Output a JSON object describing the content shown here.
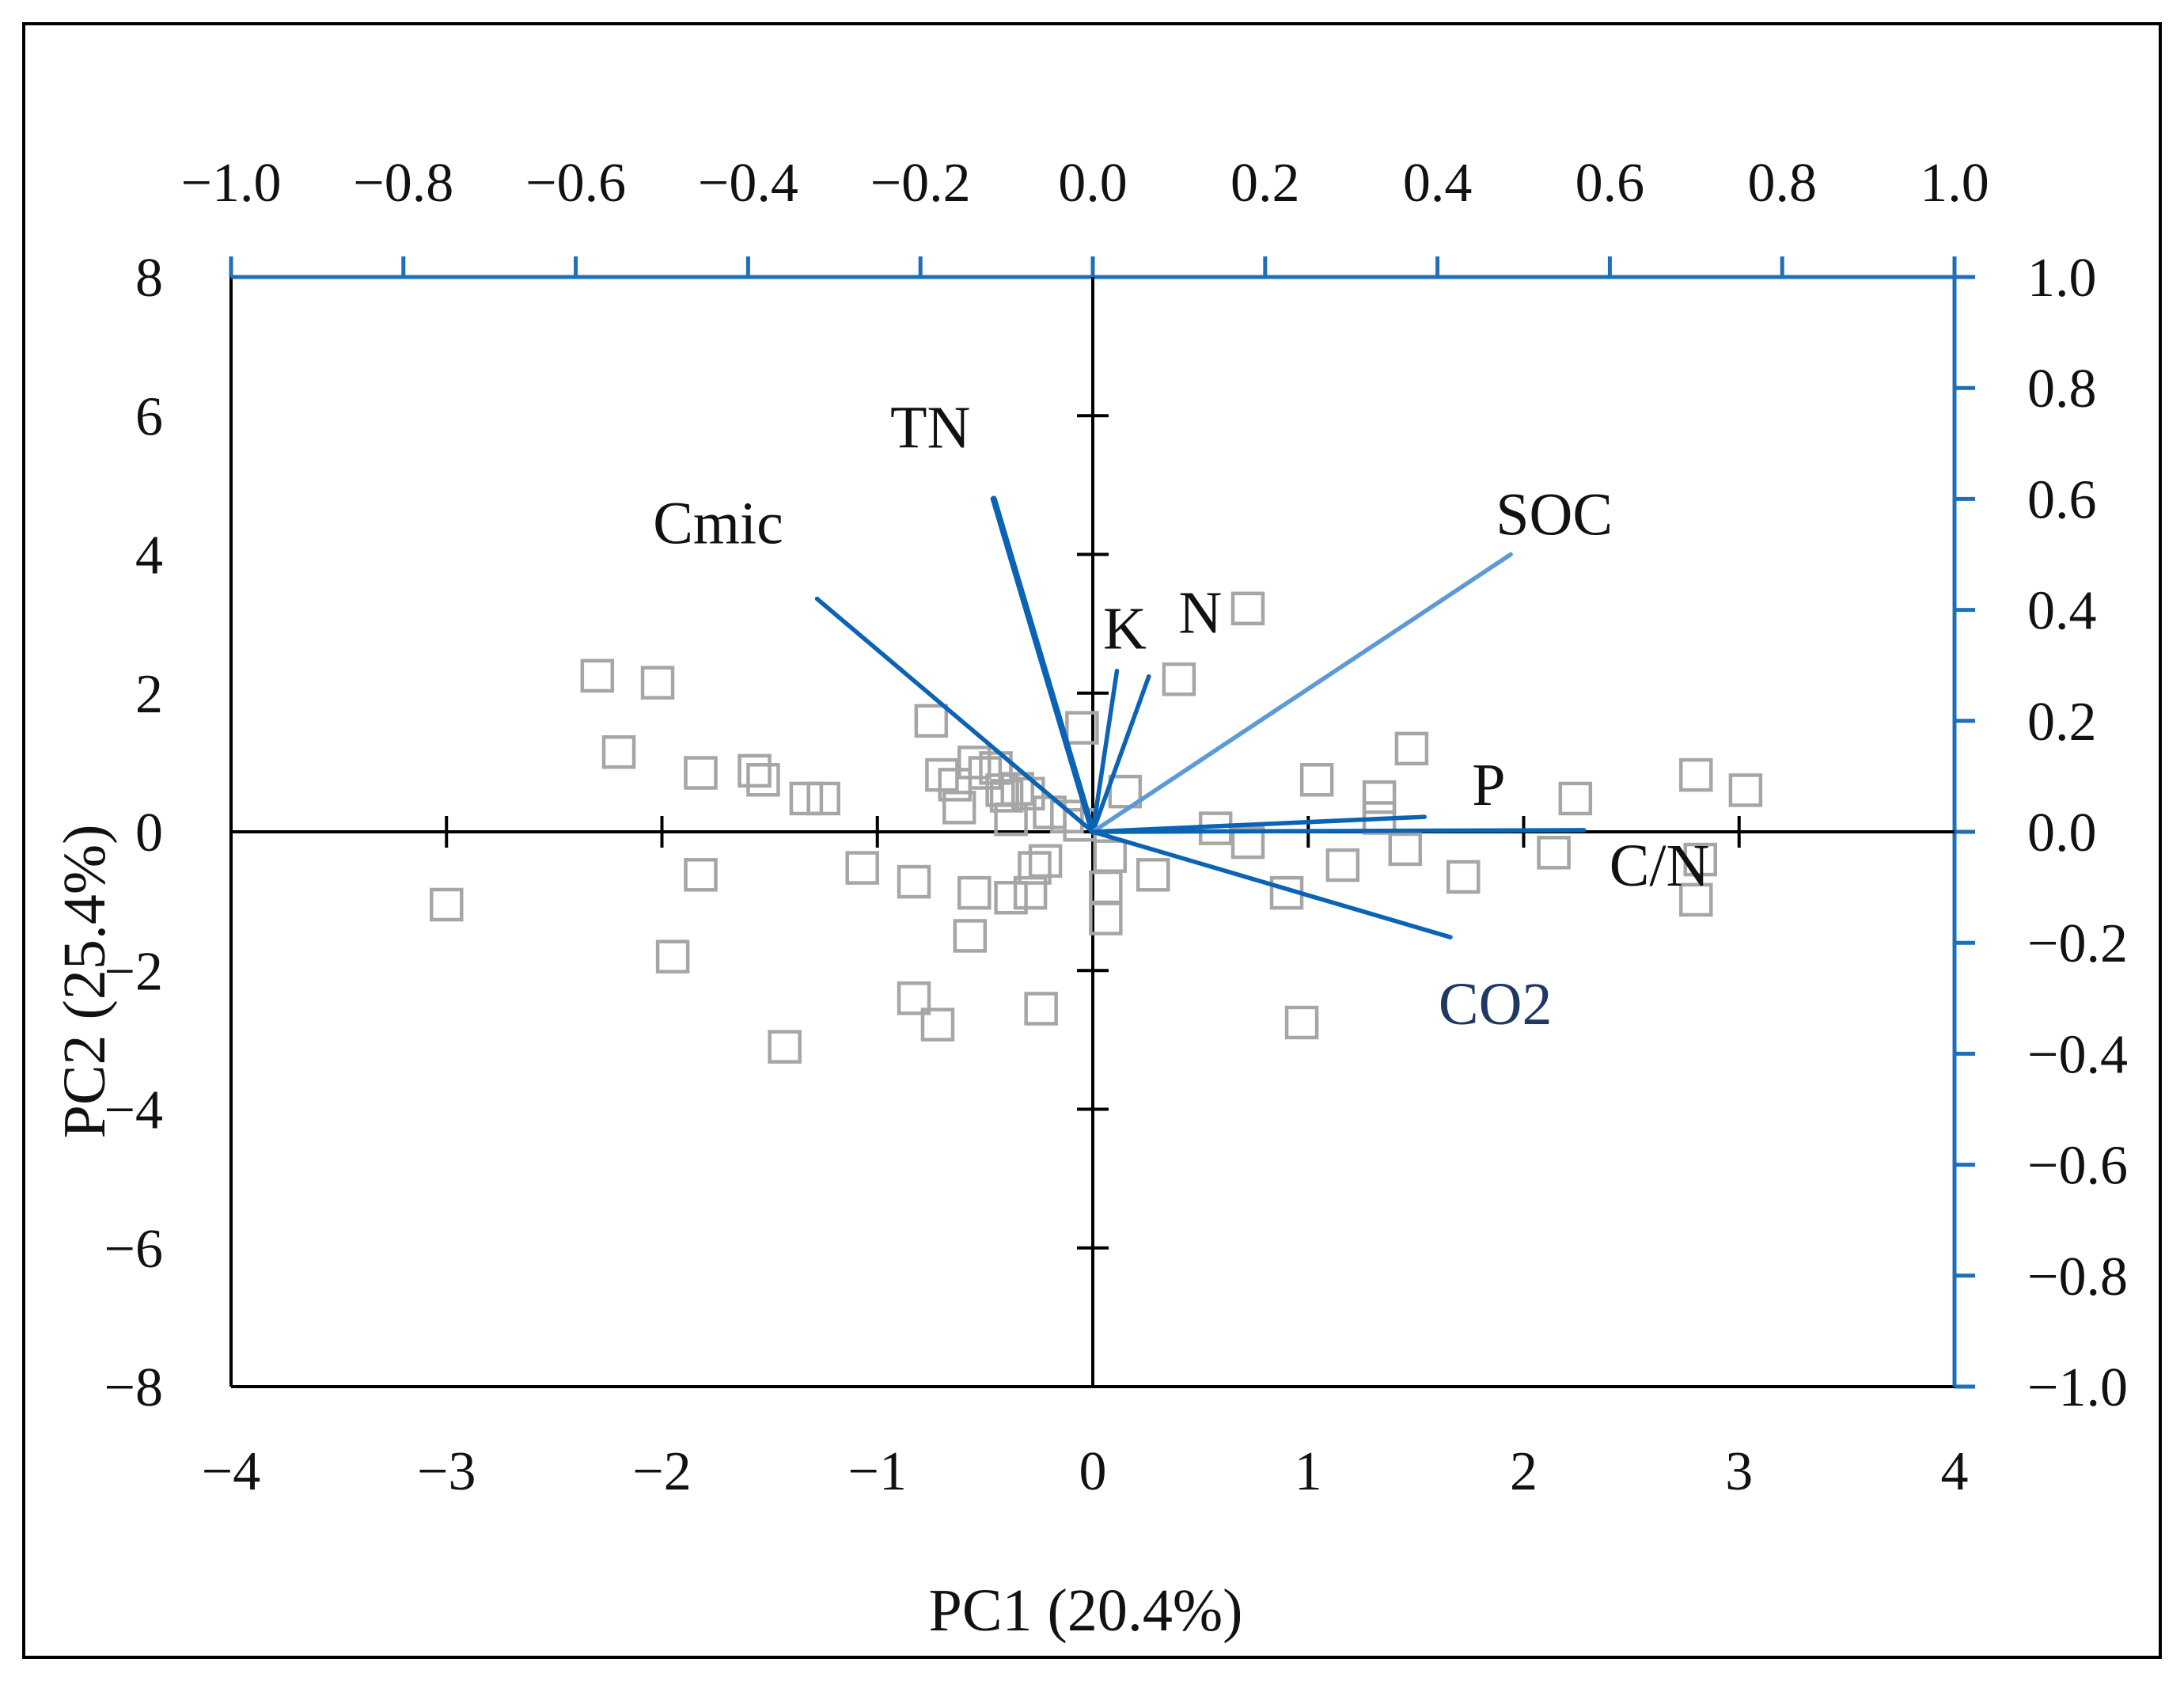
{
  "colors": {
    "frame": "#000000",
    "primary_axis": "#000000",
    "loading_axis": "#1F6FB8",
    "vector_dark": "#0B63B5",
    "vector_light": "#5B9BD5",
    "vector_label_dark": "#1F3864",
    "marker": "#A6A6A6",
    "text": "#111111"
  },
  "chart_data": {
    "type": "scatter",
    "subtype": "pca-biplot",
    "xlabel": "PC1 (20.4%)",
    "ylabel": "PC2 (25.4%)",
    "score_axes": {
      "xlim": [
        -4,
        4
      ],
      "ylim": [
        -8,
        8
      ],
      "x_ticks": [
        {
          "value": -4,
          "label": "−4"
        },
        {
          "value": -3,
          "label": "−3"
        },
        {
          "value": -2,
          "label": "−2"
        },
        {
          "value": -1,
          "label": "−1"
        },
        {
          "value": 0,
          "label": "0"
        },
        {
          "value": 1,
          "label": "1"
        },
        {
          "value": 2,
          "label": "2"
        },
        {
          "value": 3,
          "label": "3"
        },
        {
          "value": 4,
          "label": "4"
        }
      ],
      "y_ticks": [
        {
          "value": 8,
          "label": "8"
        },
        {
          "value": 6,
          "label": "6"
        },
        {
          "value": 4,
          "label": "4"
        },
        {
          "value": 2,
          "label": "2"
        },
        {
          "value": 0,
          "label": "0"
        },
        {
          "value": -2,
          "label": "−2"
        },
        {
          "value": -4,
          "label": "−4"
        },
        {
          "value": -6,
          "label": "−6"
        },
        {
          "value": -8,
          "label": "−8"
        }
      ]
    },
    "loading_axes": {
      "xlim": [
        -1,
        1
      ],
      "ylim": [
        -1,
        1
      ],
      "x_ticks": [
        {
          "value": -1.0,
          "label": "−1.0"
        },
        {
          "value": -0.8,
          "label": "−0.8"
        },
        {
          "value": -0.6,
          "label": "−0.6"
        },
        {
          "value": -0.4,
          "label": "−0.4"
        },
        {
          "value": -0.2,
          "label": "−0.2"
        },
        {
          "value": 0.0,
          "label": "0.0"
        },
        {
          "value": 0.2,
          "label": "0.2"
        },
        {
          "value": 0.4,
          "label": "0.4"
        },
        {
          "value": 0.6,
          "label": "0.6"
        },
        {
          "value": 0.8,
          "label": "0.8"
        },
        {
          "value": 1.0,
          "label": "1.0"
        }
      ],
      "y_ticks": [
        {
          "value": 1.0,
          "label": "1.0"
        },
        {
          "value": 0.8,
          "label": "0.8"
        },
        {
          "value": 0.6,
          "label": "0.6"
        },
        {
          "value": 0.4,
          "label": "0.4"
        },
        {
          "value": 0.2,
          "label": "0.2"
        },
        {
          "value": 0.0,
          "label": "0.0"
        },
        {
          "value": -0.2,
          "label": "−0.2"
        },
        {
          "value": -0.4,
          "label": "−0.4"
        },
        {
          "value": -0.6,
          "label": "−0.6"
        },
        {
          "value": -0.8,
          "label": "−0.8"
        },
        {
          "value": -1.0,
          "label": "−1.0"
        }
      ]
    },
    "loadings": [
      {
        "name": "TN",
        "x": -0.115,
        "y": 0.6,
        "style": "dark",
        "weight": "bold"
      },
      {
        "name": "Cmic",
        "x": -0.32,
        "y": 0.42,
        "style": "dark",
        "weight": "normal"
      },
      {
        "name": "K",
        "x": 0.028,
        "y": 0.29,
        "style": "dark",
        "weight": "normal"
      },
      {
        "name": "N",
        "x": 0.065,
        "y": 0.28,
        "style": "dark",
        "weight": "normal"
      },
      {
        "name": "SOC",
        "x": 0.485,
        "y": 0.5,
        "style": "light",
        "weight": "normal"
      },
      {
        "name": "P",
        "x": 0.385,
        "y": 0.027,
        "style": "dark",
        "weight": "normal"
      },
      {
        "name": "C/N",
        "x": 0.57,
        "y": 0.003,
        "style": "dark",
        "weight": "normal"
      },
      {
        "name": "CO2",
        "x": 0.415,
        "y": -0.19,
        "style": "dark",
        "weight": "normal"
      }
    ],
    "scores": [
      {
        "x": -3.0,
        "y": -1.05
      },
      {
        "x": -2.3,
        "y": 2.25
      },
      {
        "x": -2.02,
        "y": 2.15
      },
      {
        "x": -2.2,
        "y": 1.15
      },
      {
        "x": -1.82,
        "y": 0.85
      },
      {
        "x": -1.82,
        "y": -0.62
      },
      {
        "x": -1.95,
        "y": -1.8
      },
      {
        "x": -1.57,
        "y": 0.88
      },
      {
        "x": -1.53,
        "y": 0.75
      },
      {
        "x": -1.33,
        "y": 0.48
      },
      {
        "x": -1.25,
        "y": 0.48
      },
      {
        "x": -1.43,
        "y": -3.1
      },
      {
        "x": -1.07,
        "y": -0.52
      },
      {
        "x": -0.83,
        "y": -0.72
      },
      {
        "x": -0.83,
        "y": -2.4
      },
      {
        "x": -0.72,
        "y": -2.78
      },
      {
        "x": -0.75,
        "y": 1.6
      },
      {
        "x": -0.7,
        "y": 0.82
      },
      {
        "x": -0.64,
        "y": 0.68
      },
      {
        "x": -0.62,
        "y": 0.35
      },
      {
        "x": -0.55,
        "y": 1.0
      },
      {
        "x": -0.5,
        "y": 0.85
      },
      {
        "x": -0.45,
        "y": 0.92
      },
      {
        "x": -0.42,
        "y": 0.6
      },
      {
        "x": -0.4,
        "y": 0.52
      },
      {
        "x": -0.38,
        "y": 0.18
      },
      {
        "x": -0.35,
        "y": 0.62
      },
      {
        "x": -0.3,
        "y": 0.55
      },
      {
        "x": -0.55,
        "y": -0.88
      },
      {
        "x": -0.57,
        "y": -1.5
      },
      {
        "x": -0.38,
        "y": -0.95
      },
      {
        "x": -0.29,
        "y": -0.88
      },
      {
        "x": -0.27,
        "y": -0.52
      },
      {
        "x": -0.22,
        "y": -0.42
      },
      {
        "x": -0.24,
        "y": -2.55
      },
      {
        "x": -0.2,
        "y": 0.28
      },
      {
        "x": -0.12,
        "y": 0.22
      },
      {
        "x": -0.05,
        "y": 1.5
      },
      {
        "x": -0.06,
        "y": 0.1
      },
      {
        "x": 0.15,
        "y": 0.58
      },
      {
        "x": 0.08,
        "y": -0.35
      },
      {
        "x": 0.06,
        "y": -0.8
      },
      {
        "x": 0.06,
        "y": -1.25
      },
      {
        "x": 0.28,
        "y": -0.62
      },
      {
        "x": 0.4,
        "y": 2.2
      },
      {
        "x": 0.72,
        "y": 3.22
      },
      {
        "x": 0.57,
        "y": 0.05
      },
      {
        "x": 0.72,
        "y": -0.15
      },
      {
        "x": 0.9,
        "y": -0.88
      },
      {
        "x": 1.04,
        "y": 0.75
      },
      {
        "x": 0.97,
        "y": -2.75
      },
      {
        "x": 1.16,
        "y": -0.48
      },
      {
        "x": 1.33,
        "y": 0.5
      },
      {
        "x": 1.33,
        "y": 0.2
      },
      {
        "x": 1.48,
        "y": 1.2
      },
      {
        "x": 1.45,
        "y": -0.25
      },
      {
        "x": 1.72,
        "y": -0.65
      },
      {
        "x": 2.14,
        "y": -0.3
      },
      {
        "x": 2.24,
        "y": 0.48
      },
      {
        "x": 2.8,
        "y": 0.82
      },
      {
        "x": 3.03,
        "y": 0.6
      },
      {
        "x": 2.82,
        "y": -0.4
      },
      {
        "x": 2.8,
        "y": -0.98
      }
    ]
  }
}
